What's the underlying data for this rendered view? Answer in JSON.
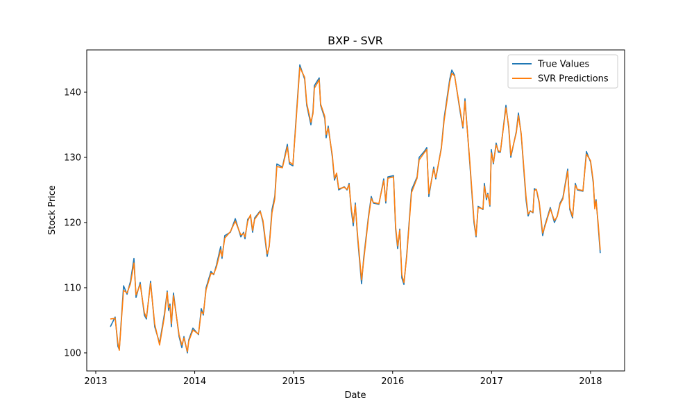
{
  "chart_data": {
    "type": "line",
    "title": "BXP - SVR",
    "xlabel": "Date",
    "ylabel": "Stock Price",
    "x": [
      2013.147,
      2013.196,
      2013.224,
      2013.238,
      2013.281,
      2013.316,
      2013.351,
      2013.386,
      2013.407,
      2013.449,
      2013.491,
      2013.512,
      2013.554,
      2013.596,
      2013.645,
      2013.694,
      2013.722,
      2013.736,
      2013.75,
      2013.764,
      2013.785,
      2013.842,
      2013.87,
      2013.891,
      2013.926,
      2013.94,
      2013.982,
      2014.038,
      2014.066,
      2014.087,
      2014.115,
      2014.164,
      2014.192,
      2014.22,
      2014.262,
      2014.276,
      2014.304,
      2014.36,
      2014.41,
      2014.466,
      2014.494,
      2014.508,
      2014.536,
      2014.564,
      2014.585,
      2014.606,
      2014.662,
      2014.69,
      2014.732,
      2014.753,
      2014.781,
      2014.809,
      2014.83,
      2014.886,
      2014.936,
      2014.957,
      2014.992,
      2015.02,
      2015.062,
      2015.111,
      2015.132,
      2015.174,
      2015.195,
      2015.209,
      2015.258,
      2015.272,
      2015.314,
      2015.328,
      2015.349,
      2015.391,
      2015.412,
      2015.434,
      2015.455,
      2015.511,
      2015.539,
      2015.56,
      2015.581,
      2015.602,
      2015.623,
      2015.644,
      2015.686,
      2015.707,
      2015.756,
      2015.784,
      2015.805,
      2015.861,
      2015.91,
      2015.931,
      2015.952,
      2016.009,
      2016.03,
      2016.051,
      2016.072,
      2016.093,
      2016.114,
      2016.142,
      2016.191,
      2016.247,
      2016.268,
      2016.324,
      2016.345,
      2016.366,
      2016.415,
      2016.436,
      2016.492,
      2016.52,
      2016.577,
      2016.598,
      2016.626,
      2016.682,
      2016.71,
      2016.731,
      2016.78,
      2016.822,
      2016.843,
      2016.864,
      2016.913,
      2016.927,
      2016.948,
      2016.962,
      2016.983,
      2016.997,
      2017.018,
      2017.046,
      2017.068,
      2017.089,
      2017.145,
      2017.173,
      2017.194,
      2017.25,
      2017.271,
      2017.299,
      2017.348,
      2017.369,
      2017.39,
      2017.418,
      2017.432,
      2017.453,
      2017.481,
      2017.516,
      2017.537,
      2017.593,
      2017.635,
      2017.663,
      2017.692,
      2017.72,
      2017.769,
      2017.79,
      2017.818,
      2017.846,
      2017.867,
      2017.923,
      2017.958,
      2018.0,
      2018.028,
      2018.042,
      2018.056,
      2018.077,
      2018.098
    ],
    "series": [
      {
        "name": "True Values",
        "color": "#1f77b4",
        "values": [
          104,
          105.5,
          101,
          100.5,
          110.3,
          109,
          111,
          114.5,
          108.5,
          110.8,
          105.8,
          105.2,
          111,
          104,
          101.5,
          106,
          109.5,
          106.5,
          107.5,
          104,
          109.2,
          102.5,
          100.8,
          102.5,
          100,
          102,
          103.8,
          102.8,
          106.8,
          105.8,
          110,
          112.5,
          112,
          113.5,
          116.3,
          114.5,
          118,
          118.5,
          120.6,
          117.8,
          118.5,
          117.5,
          120.5,
          121,
          118.5,
          120.7,
          121.8,
          120,
          114.8,
          116.5,
          122,
          124,
          129,
          128.5,
          132,
          129,
          128.7,
          135,
          144.2,
          142,
          138,
          135,
          137,
          141,
          142.2,
          138,
          136,
          133,
          134.8,
          130,
          126.5,
          127.5,
          125,
          125.5,
          125,
          126,
          122,
          119.5,
          123,
          118,
          110.6,
          114.5,
          121,
          124,
          123,
          122.8,
          126.7,
          123,
          127,
          127.2,
          119,
          116,
          119,
          111.5,
          110.5,
          115,
          125,
          127,
          130,
          131,
          131.5,
          124,
          128.5,
          126.7,
          131.5,
          136,
          142,
          143.4,
          142.6,
          137,
          134.5,
          139,
          129,
          120,
          117.8,
          122.5,
          122,
          126,
          123.5,
          124.5,
          122.5,
          131.2,
          129,
          132.2,
          130.8,
          130.8,
          138,
          134.5,
          130,
          134,
          136.8,
          133.5,
          123.5,
          121,
          121.8,
          121.5,
          125.2,
          125,
          123,
          118,
          119.5,
          122.3,
          120,
          121,
          123,
          123.8,
          128.2,
          122,
          120.7,
          126,
          125,
          124.8,
          130.9,
          129.3,
          126,
          122.5,
          123.5,
          119.5,
          115.3
        ]
      },
      {
        "name": "SVR Predictions",
        "color": "#ff7f0e",
        "values": [
          105.2,
          105.3,
          101.5,
          100.4,
          109.6,
          109.2,
          110.6,
          113.8,
          108.9,
          110.5,
          106.2,
          105.4,
          110.7,
          104.4,
          101.2,
          105.6,
          109.3,
          107,
          107.2,
          104.5,
          108.8,
          102.8,
          101.2,
          102.3,
          100.2,
          101.8,
          103.5,
          102.9,
          106.3,
          106,
          109.7,
          112.2,
          112.1,
          113.2,
          115.8,
          114.8,
          117.6,
          118.6,
          120.2,
          118.1,
          118.3,
          117.8,
          120.2,
          121.2,
          118.8,
          120.5,
          121.7,
          120.3,
          115.2,
          116.3,
          121.5,
          123.6,
          128.6,
          128.4,
          131.6,
          129.3,
          128.9,
          134.6,
          143.8,
          142.3,
          138.3,
          135.4,
          136.7,
          140.6,
          141.9,
          138.2,
          136.3,
          133.5,
          134.5,
          130.3,
          126.8,
          127.6,
          125.2,
          125.4,
          125.1,
          125.8,
          122.4,
          120,
          122.7,
          118.4,
          111.2,
          114.1,
          120.7,
          123.7,
          123.1,
          122.9,
          126.4,
          123.3,
          126.8,
          127,
          119.4,
          116.4,
          118.8,
          112,
          110.8,
          114.7,
          124.6,
          126.8,
          129.6,
          130.8,
          131.2,
          124.4,
          128.2,
          126.9,
          131.3,
          135.6,
          141.6,
          142.9,
          142.5,
          137.3,
          134.7,
          138.6,
          129.4,
          120.4,
          118,
          122.3,
          122.1,
          125.6,
          123.8,
          124.3,
          122.7,
          130.7,
          129.2,
          131.9,
          131,
          130.9,
          137.6,
          134.8,
          130.3,
          133.8,
          136.4,
          133.7,
          124,
          121.3,
          121.7,
          121.6,
          124.9,
          125.1,
          123.2,
          118.4,
          119.3,
          122.1,
          120.3,
          120.9,
          122.8,
          123.6,
          127.9,
          122.3,
          120.9,
          125.7,
          125.1,
          124.9,
          130.5,
          129.5,
          126.3,
          122.1,
          123.3,
          119.9,
          115.8
        ]
      }
    ],
    "xlim": [
      2012.909,
      2018.344
    ],
    "xticks": [
      2013,
      2014,
      2015,
      2016,
      2017,
      2018
    ],
    "ylim": [
      97.23,
      146.49
    ],
    "yticks": [
      100,
      110,
      120,
      130,
      140
    ],
    "legend": "upper right"
  }
}
